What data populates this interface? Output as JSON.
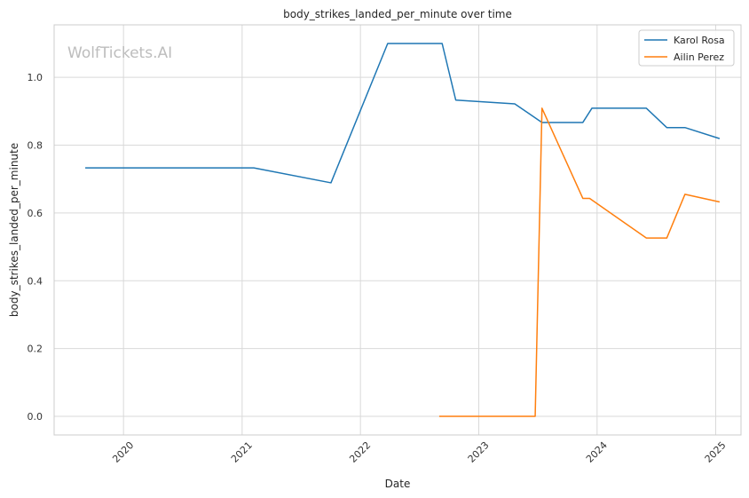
{
  "chart_data": {
    "type": "line",
    "title": "body_strikes_landed_per_minute over time",
    "xlabel": "Date",
    "ylabel": "body_strikes_landed_per_minute",
    "watermark": "WolfTickets.AI",
    "x_type": "date",
    "xlim": [
      "2019-06-01",
      "2025-03-20"
    ],
    "ylim": [
      -0.055,
      1.155
    ],
    "x_ticks": [
      {
        "date": "2020-01-01",
        "label": "2020"
      },
      {
        "date": "2021-01-01",
        "label": "2021"
      },
      {
        "date": "2022-01-01",
        "label": "2022"
      },
      {
        "date": "2023-01-01",
        "label": "2023"
      },
      {
        "date": "2024-01-01",
        "label": "2024"
      },
      {
        "date": "2025-01-01",
        "label": "2025"
      }
    ],
    "y_ticks": [
      {
        "value": 0.0,
        "label": "0.0"
      },
      {
        "value": 0.2,
        "label": "0.2"
      },
      {
        "value": 0.4,
        "label": "0.4"
      },
      {
        "value": 0.6,
        "label": "0.6"
      },
      {
        "value": 0.8,
        "label": "0.8"
      },
      {
        "value": 1.0,
        "label": "1.0"
      }
    ],
    "grid": true,
    "legend_position": "top-right",
    "series": [
      {
        "name": "Karol Rosa",
        "color": "#1f77b4",
        "points": [
          {
            "x": "2019-09-07",
            "y": 0.733
          },
          {
            "x": "2021-02-06",
            "y": 0.733
          },
          {
            "x": "2021-10-02",
            "y": 0.689
          },
          {
            "x": "2022-03-26",
            "y": 1.1
          },
          {
            "x": "2022-09-10",
            "y": 1.1
          },
          {
            "x": "2022-10-22",
            "y": 0.933
          },
          {
            "x": "2023-04-22",
            "y": 0.922
          },
          {
            "x": "2023-07-15",
            "y": 0.867
          },
          {
            "x": "2023-11-18",
            "y": 0.867
          },
          {
            "x": "2023-12-16",
            "y": 0.909
          },
          {
            "x": "2024-06-01",
            "y": 0.909
          },
          {
            "x": "2024-08-03",
            "y": 0.852
          },
          {
            "x": "2024-09-28",
            "y": 0.852
          },
          {
            "x": "2025-01-11",
            "y": 0.82
          }
        ]
      },
      {
        "name": "Ailin Perez",
        "color": "#ff7f0e",
        "points": [
          {
            "x": "2022-09-03",
            "y": 0.0
          },
          {
            "x": "2023-06-24",
            "y": 0.0
          },
          {
            "x": "2023-07-15",
            "y": 0.909
          },
          {
            "x": "2023-11-18",
            "y": 0.643
          },
          {
            "x": "2023-12-09",
            "y": 0.643
          },
          {
            "x": "2024-06-01",
            "y": 0.526
          },
          {
            "x": "2024-08-03",
            "y": 0.526
          },
          {
            "x": "2024-09-28",
            "y": 0.655
          },
          {
            "x": "2025-01-11",
            "y": 0.633
          }
        ]
      }
    ]
  }
}
